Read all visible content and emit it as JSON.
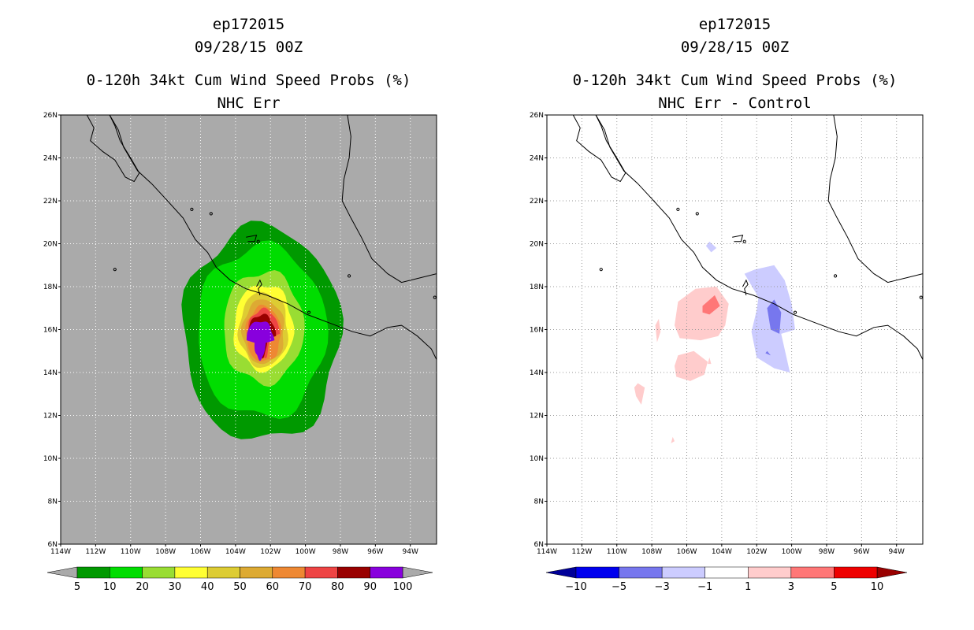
{
  "chart_data": [
    {
      "type": "heatmap",
      "storm_id": "ep172015",
      "datetime": "09/28/15 00Z",
      "title": "0-120h 34kt Cum Wind Speed Probs (%)",
      "subtitle": "NHC Err",
      "x_ticks": [
        "114W",
        "112W",
        "110W",
        "108W",
        "106W",
        "104W",
        "102W",
        "100W",
        "98W",
        "96W",
        "94W"
      ],
      "y_ticks": [
        "6N",
        "8N",
        "10N",
        "12N",
        "14N",
        "16N",
        "18N",
        "20N",
        "22N",
        "24N",
        "26N"
      ],
      "xlim": [
        -114,
        -92.5
      ],
      "ylim": [
        6,
        26
      ],
      "center": {
        "lon": -102.5,
        "lat": 15.5
      },
      "contour_levels": [
        5,
        10,
        20,
        30,
        40,
        50,
        60,
        70,
        80,
        90,
        100
      ],
      "level_colors": [
        "#009900",
        "#00dd00",
        "#99dd33",
        "#ffff33",
        "#ddcc33",
        "#ddaa33",
        "#ee8833",
        "#ee4444",
        "#990000",
        "#8800dd"
      ],
      "background_color": "#aaaaaa",
      "colorbar_labels": [
        "5",
        "10",
        "20",
        "30",
        "40",
        "50",
        "60",
        "70",
        "80",
        "90",
        "100"
      ],
      "shapes": [
        {
          "lvl": 5,
          "rx": 4.5,
          "ry": 5.0,
          "dx": 0.0,
          "dy": 0.3
        },
        {
          "lvl": 10,
          "rx": 3.7,
          "ry": 4.0,
          "dx": 0.0,
          "dy": 0.4
        },
        {
          "lvl": 20,
          "rx": 2.3,
          "ry": 2.6,
          "dx": 0.1,
          "dy": 0.6
        },
        {
          "lvl": 30,
          "rx": 1.7,
          "ry": 2.0,
          "dx": 0.1,
          "dy": 0.6
        },
        {
          "lvl": 40,
          "rx": 1.4,
          "ry": 1.75,
          "dx": 0.1,
          "dy": 0.5
        },
        {
          "lvl": 50,
          "rx": 1.2,
          "ry": 1.5,
          "dx": 0.1,
          "dy": 0.4
        },
        {
          "lvl": 60,
          "rx": 1.0,
          "ry": 1.3,
          "dx": 0.1,
          "dy": 0.3
        },
        {
          "lvl": 70,
          "rx": 0.9,
          "ry": 1.15,
          "dx": 0.1,
          "dy": 0.3
        },
        {
          "lvl": 80,
          "rx": 0.8,
          "ry": 1.0,
          "dx": 0.0,
          "dy": 0.2
        },
        {
          "lvl": 90,
          "rx": 0.8,
          "ry": 0.9,
          "dx": -0.1,
          "dy": 0.0
        }
      ]
    },
    {
      "type": "heatmap",
      "storm_id": "ep172015",
      "datetime": "09/28/15 00Z",
      "title": "0-120h 34kt Cum Wind Speed Probs (%)",
      "subtitle": "NHC Err - Control",
      "x_ticks": [
        "114W",
        "112W",
        "110W",
        "108W",
        "106W",
        "104W",
        "102W",
        "100W",
        "98W",
        "96W",
        "94W"
      ],
      "y_ticks": [
        "6N",
        "8N",
        "10N",
        "12N",
        "14N",
        "16N",
        "18N",
        "20N",
        "22N",
        "24N",
        "26N"
      ],
      "xlim": [
        -114,
        -92.5
      ],
      "ylim": [
        6,
        26
      ],
      "contour_levels": [
        -10,
        -5,
        -3,
        -1,
        1,
        3,
        5,
        10
      ],
      "level_colors": [
        "#000099",
        "#0000ee",
        "#7777ee",
        "#ccccff",
        "#ffffff",
        "#ffcccc",
        "#ff7777",
        "#ee0000",
        "#990000"
      ],
      "background_color": "#ffffff",
      "colorbar_labels": [
        "-10",
        "-5",
        "-3",
        "-1",
        "1",
        "3",
        "5",
        "10"
      ],
      "regions": [
        {
          "class": "1..3",
          "lonlat": [
            [
              -106.7,
              16.2
            ],
            [
              -106.5,
              17.3
            ],
            [
              -105.5,
              17.9
            ],
            [
              -104.3,
              18.0
            ],
            [
              -103.6,
              17.2
            ],
            [
              -103.8,
              16.2
            ],
            [
              -104.2,
              15.7
            ],
            [
              -105.2,
              15.5
            ],
            [
              -106.4,
              15.6
            ]
          ]
        },
        {
          "class": "1..3",
          "lonlat": [
            [
              -106.7,
              14.3
            ],
            [
              -106.5,
              14.8
            ],
            [
              -105.6,
              15.0
            ],
            [
              -104.8,
              14.5
            ],
            [
              -105.0,
              13.9
            ],
            [
              -105.8,
              13.6
            ],
            [
              -106.6,
              13.8
            ]
          ]
        },
        {
          "class": "1..3",
          "lonlat": [
            [
              -108.8,
              13.5
            ],
            [
              -108.4,
              13.3
            ],
            [
              -108.6,
              12.5
            ],
            [
              -108.9,
              12.9
            ],
            [
              -109.0,
              13.3
            ]
          ]
        },
        {
          "class": "1..3",
          "lonlat": [
            [
              -107.8,
              16.2
            ],
            [
              -107.6,
              16.5
            ],
            [
              -107.5,
              15.9
            ],
            [
              -107.7,
              15.4
            ]
          ]
        },
        {
          "class": "1..3",
          "lonlat": [
            [
              -106.8,
              11.0
            ],
            [
              -106.7,
              10.8
            ],
            [
              -106.9,
              10.7
            ]
          ]
        },
        {
          "class": "1..3",
          "lonlat": [
            [
              -104.7,
              14.7
            ],
            [
              -104.6,
              14.4
            ],
            [
              -104.8,
              14.4
            ]
          ]
        },
        {
          "class": "3..5",
          "lonlat": [
            [
              -105.1,
              17.1
            ],
            [
              -104.4,
              17.6
            ],
            [
              -104.1,
              17.1
            ],
            [
              -104.7,
              16.7
            ],
            [
              -105.1,
              16.8
            ]
          ]
        },
        {
          "class": "-3..-1",
          "lonlat": [
            [
              -102.1,
              18.8
            ],
            [
              -101.0,
              19.0
            ],
            [
              -100.4,
              18.3
            ],
            [
              -100.0,
              17.2
            ],
            [
              -99.8,
              16.0
            ],
            [
              -100.6,
              15.8
            ],
            [
              -100.1,
              14.0
            ],
            [
              -101.0,
              14.2
            ],
            [
              -102.0,
              14.7
            ],
            [
              -102.3,
              15.9
            ],
            [
              -102.0,
              16.9
            ],
            [
              -101.9,
              17.5
            ],
            [
              -102.7,
              18.6
            ]
          ]
        },
        {
          "class": "-3..-1",
          "lonlat": [
            [
              -104.7,
              20.1
            ],
            [
              -104.3,
              19.8
            ],
            [
              -104.6,
              19.6
            ],
            [
              -104.9,
              19.9
            ]
          ]
        },
        {
          "class": "-5..-3",
          "lonlat": [
            [
              -101.0,
              17.4
            ],
            [
              -100.6,
              16.8
            ],
            [
              -100.7,
              15.8
            ],
            [
              -101.2,
              16.0
            ],
            [
              -101.4,
              17.0
            ]
          ]
        },
        {
          "class": "-5..-3",
          "lonlat": [
            [
              -101.4,
              15.0
            ],
            [
              -101.2,
              14.8
            ],
            [
              -101.5,
              14.9
            ]
          ]
        }
      ]
    }
  ]
}
